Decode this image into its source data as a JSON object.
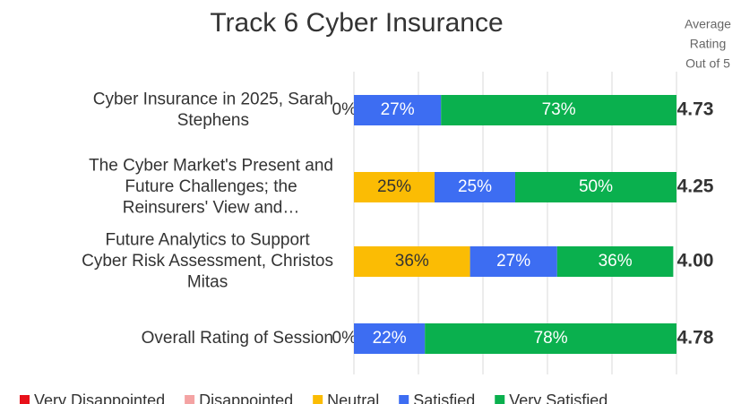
{
  "chart_data": {
    "type": "stacked_bar_horizontal",
    "title": "Track 6 Cyber Insurance",
    "categories": [
      [
        "Cyber Insurance in 2025, Sarah",
        "Stephens"
      ],
      [
        "The Cyber Market's Present and",
        "Future Challenges; the",
        "Reinsurers' View and…"
      ],
      [
        "Future Analytics to Support",
        "Cyber Risk Assessment, Christos",
        "Mitas"
      ],
      [
        "Overall Rating of Session"
      ]
    ],
    "series": [
      {
        "name": "Very Disappointed",
        "color": "#e8111a",
        "values": [
          0,
          0,
          0,
          0
        ],
        "value_labels": [
          null,
          null,
          null,
          null
        ]
      },
      {
        "name": "Disappointed",
        "color": "#f4a3a3",
        "values": [
          0,
          0,
          0,
          0
        ],
        "value_labels": [
          null,
          null,
          null,
          null
        ]
      },
      {
        "name": "Neutral",
        "color": "#fbbc04",
        "values": [
          0,
          25,
          36,
          0
        ],
        "value_labels": [
          "0%",
          "25%",
          "36%",
          "0%"
        ]
      },
      {
        "name": "Satisfied",
        "color": "#3d6df2",
        "values": [
          27,
          25,
          27,
          22
        ],
        "value_labels": [
          "27%",
          "25%",
          "27%",
          "22%"
        ]
      },
      {
        "name": "Very Satisfied",
        "color": "#0ab04e",
        "values": [
          73,
          50,
          36,
          78
        ],
        "value_labels": [
          "73%",
          "50%",
          "36%",
          "78%"
        ]
      }
    ],
    "xlim": [
      0,
      100
    ],
    "xticks": [
      0,
      20,
      40,
      60,
      80,
      100
    ],
    "grid": true,
    "legend": "bottom",
    "averages": {
      "title": [
        "Average",
        "Rating",
        "Out of 5"
      ],
      "values": [
        4.73,
        4.25,
        4,
        4.78
      ],
      "value_labels": [
        "4.73",
        "4.25",
        "4.00",
        "4.78"
      ]
    }
  }
}
